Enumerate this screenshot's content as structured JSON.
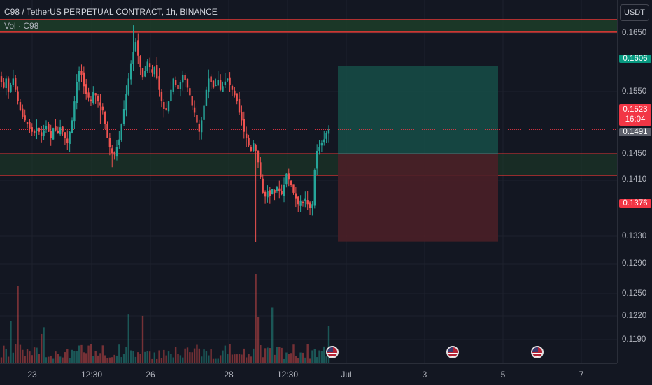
{
  "legend": {
    "title": "C98 / TetherUS PERPETUAL CONTRACT, 1h, BINANCE",
    "volume": "Vol · C98"
  },
  "currency": "USDT",
  "price_axis": {
    "labels": [
      "0.1650",
      "0.1550",
      "0.1450",
      "0.1410",
      "0.1330",
      "0.1290",
      "0.1250",
      "0.1220",
      "0.1190"
    ],
    "tags": {
      "take_profit": "0.1606",
      "current_price": "0.1523",
      "countdown": "16:04",
      "entry": "0.1491",
      "stop_loss": "0.1376"
    }
  },
  "time_axis": {
    "labels": [
      "23",
      "12:30",
      "26",
      "28",
      "12:30",
      "Jul",
      "3",
      "5",
      "7"
    ]
  },
  "colors": {
    "background": "#131722",
    "up": "#26a69a",
    "down": "#ef5350",
    "profit_zone": "#164a45",
    "loss_zone": "#4a1f27",
    "resistance_zone": "#1d3b28",
    "level_line": "#e53935",
    "current_price_tag": "#f23645",
    "take_profit_tag": "#089981",
    "entry_tag": "#5d606b"
  },
  "event_markers": [
    "us-flag-icon",
    "us-flag-icon",
    "us-flag-icon"
  ],
  "chart_data": {
    "type": "candlestick",
    "symbol": "C98USDT.P",
    "interval": "1h",
    "price_range": [
      0.118,
      0.168
    ],
    "key_levels": {
      "resistance_zone": [
        0.1651,
        0.1661
      ],
      "support_zone": [
        0.1463,
        0.1491
      ],
      "current_price": 0.1523,
      "position_entry": 0.1491,
      "position_take_profit": 0.1606,
      "position_stop_loss": 0.1376
    },
    "price_path": [
      0.1585,
      0.1578,
      0.159,
      0.1572,
      0.1582,
      0.159,
      0.1575,
      0.156,
      0.1548,
      0.154,
      0.1535,
      0.153,
      0.1524,
      0.152,
      0.1518,
      0.1525,
      0.152,
      0.1515,
      0.1522,
      0.1528,
      0.152,
      0.1512,
      0.1525,
      0.1522,
      0.1518,
      0.1526,
      0.152,
      0.1512,
      0.1505,
      0.152,
      0.1535,
      0.156,
      0.1585,
      0.16,
      0.1595,
      0.158,
      0.157,
      0.1565,
      0.156,
      0.1572,
      0.1568,
      0.156,
      0.1555,
      0.1548,
      0.153,
      0.1512,
      0.15,
      0.1492,
      0.149,
      0.15,
      0.151,
      0.153,
      0.155,
      0.157,
      0.159,
      0.161,
      0.1625,
      0.1638,
      0.162,
      0.1605,
      0.1592,
      0.16,
      0.1612,
      0.1605,
      0.1598,
      0.1605,
      0.159,
      0.1575,
      0.156,
      0.155,
      0.1548,
      0.156,
      0.1575,
      0.159,
      0.1582,
      0.1576,
      0.1585,
      0.1595,
      0.1588,
      0.1578,
      0.1568,
      0.1555,
      0.1545,
      0.1532,
      0.152,
      0.1535,
      0.1555,
      0.1575,
      0.159,
      0.1585,
      0.1578,
      0.1582,
      0.1588,
      0.1575,
      0.158,
      0.1586,
      0.159,
      0.1582,
      0.1575,
      0.1568,
      0.156,
      0.1545,
      0.1535,
      0.152,
      0.1512,
      0.1502,
      0.1495,
      0.1505,
      0.1495,
      0.148,
      0.146,
      0.144,
      0.1435,
      0.1442,
      0.1436,
      0.1445,
      0.144,
      0.1448,
      0.1442,
      0.1438,
      0.145,
      0.1465,
      0.1458,
      0.145,
      0.144,
      0.1432,
      0.1425,
      0.143,
      0.1428,
      0.1432,
      0.1425,
      0.142,
      0.1425,
      0.147,
      0.1495,
      0.15,
      0.1505,
      0.151,
      0.1518,
      0.1523
    ],
    "notable_wicks": {
      "high": 0.166,
      "low": 0.1375
    },
    "volume": {
      "visible": true,
      "spikes": "largest near 28 00:00 and around the 25th"
    },
    "x_axis": [
      "23",
      "12:30",
      "26",
      "28",
      "12:30",
      "Jul",
      "3",
      "5",
      "7"
    ],
    "y_axis_ticks": [
      0.165,
      0.155,
      0.145,
      0.141,
      0.133,
      0.129,
      0.125,
      0.122,
      0.119
    ]
  }
}
